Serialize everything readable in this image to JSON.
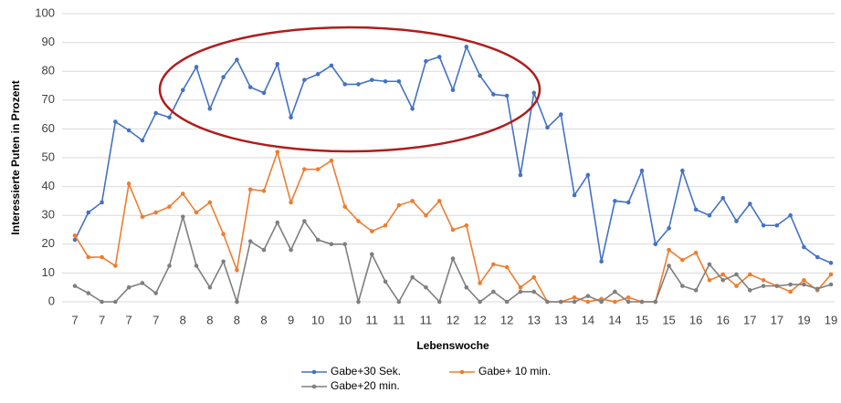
{
  "chart_data": {
    "type": "line",
    "ylabel": "Interessierte Puten in Prozent",
    "xlabel": "Lebenswoche",
    "categories": [
      "7",
      null,
      "7",
      null,
      "7",
      null,
      "7",
      null,
      "8",
      null,
      "8",
      null,
      "8",
      null,
      "8",
      null,
      "9",
      null,
      "10",
      null,
      "10",
      null,
      "11",
      null,
      "11",
      null,
      "11",
      null,
      "12",
      null,
      "12",
      null,
      "12",
      null,
      "13",
      null,
      "13",
      null,
      "14",
      null,
      "14",
      null,
      "15",
      null,
      "15",
      null,
      "16",
      null,
      "16",
      null,
      "17",
      null,
      "17",
      null,
      "19",
      null,
      "19"
    ],
    "series": [
      {
        "name": "Gabe+30 Sek.",
        "color": "#4472c4",
        "values": [
          21.5,
          31,
          34.5,
          62.5,
          59.5,
          56,
          65.5,
          64,
          73.5,
          81.5,
          67,
          78,
          84,
          74.5,
          72.5,
          82.5,
          64,
          77,
          79,
          82,
          75.5,
          75.5,
          77,
          76.5,
          76.5,
          67,
          83.5,
          85,
          73.5,
          88.5,
          78.5,
          72,
          71.5,
          44,
          72.5,
          60.5,
          65,
          37,
          44,
          14,
          35,
          34.5,
          45.5,
          20,
          25.5,
          45.5,
          32,
          30,
          36,
          28,
          34,
          26.5,
          26.5,
          30,
          19,
          15.5,
          13.5
        ]
      },
      {
        "name": "Gabe+ 10 min.",
        "color": "#ed7d31",
        "values": [
          23,
          15.5,
          15.5,
          12.5,
          41,
          29.5,
          31,
          33,
          37.5,
          31,
          34.5,
          23.5,
          11,
          39,
          38.5,
          52,
          34.5,
          46,
          46,
          49,
          33,
          28,
          24.5,
          26.5,
          33.5,
          35,
          30,
          35,
          25,
          26.5,
          6.5,
          13,
          12,
          5,
          8.5,
          0,
          0,
          1.5,
          0,
          1,
          0,
          1.5,
          0,
          0,
          18,
          14.5,
          17,
          7.5,
          9.5,
          5.5,
          9.5,
          7.5,
          5.5,
          3.5,
          7.5,
          4,
          9.5
        ]
      },
      {
        "name": "Gabe+20 min.",
        "color": "#7f7f7f",
        "values": [
          5.5,
          3,
          0,
          0,
          5,
          6.5,
          3,
          12.5,
          29.5,
          12.5,
          5,
          14,
          0,
          21,
          18,
          27.5,
          18,
          28,
          21.5,
          20,
          20,
          0,
          16.5,
          7,
          0,
          8.5,
          5,
          0,
          15,
          5,
          0,
          3.5,
          0,
          3.5,
          3.5,
          0,
          0,
          0,
          2,
          0,
          3.5,
          0,
          0,
          0,
          12.5,
          5.5,
          4,
          13,
          7.5,
          9.5,
          4,
          5.5,
          5.5,
          6,
          6,
          4.5,
          6
        ]
      }
    ],
    "ylim": [
      0,
      100
    ],
    "yticks": [
      0,
      10,
      20,
      30,
      40,
      50,
      60,
      70,
      80,
      90,
      100
    ],
    "grid": true
  }
}
